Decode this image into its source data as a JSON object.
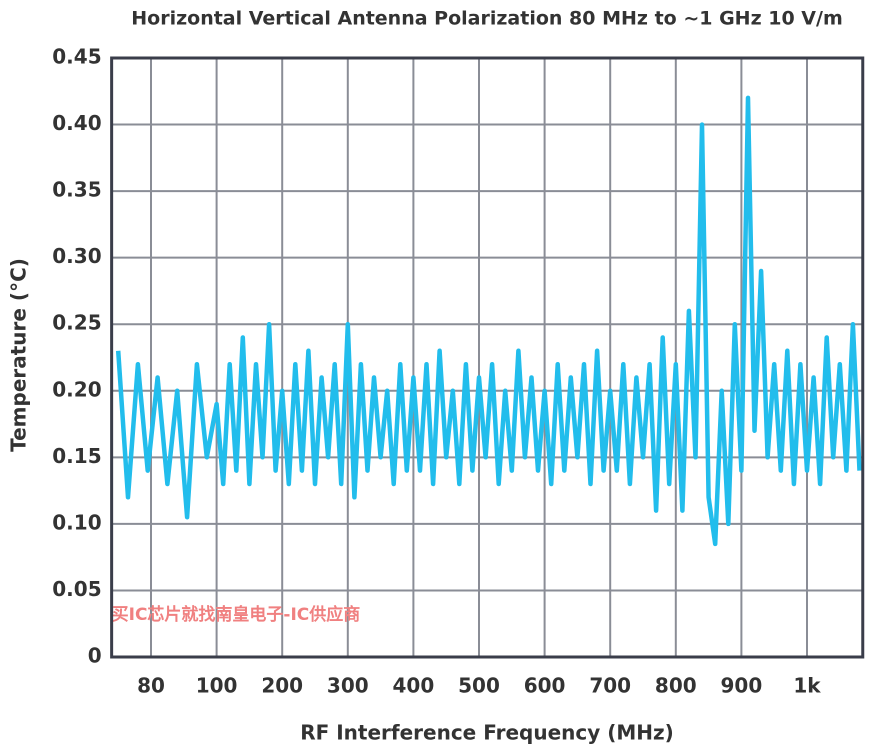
{
  "chart_data": {
    "type": "line",
    "title": "Horizontal Vertical Antenna Polarization 80 MHz to ~1 GHz 10 V/m",
    "x_label": "RF Interference Frequency (MHz)",
    "y_label": "Temperature (°C)",
    "annotation": "买IC芯片就找南皇电子-IC供应商",
    "x": [
      70,
      73,
      76,
      79,
      82,
      85,
      88,
      91,
      94,
      97,
      100,
      110,
      120,
      130,
      140,
      150,
      160,
      170,
      180,
      190,
      200,
      210,
      220,
      230,
      240,
      250,
      260,
      270,
      280,
      290,
      300,
      310,
      320,
      330,
      340,
      350,
      360,
      370,
      380,
      390,
      400,
      410,
      420,
      430,
      440,
      450,
      460,
      470,
      480,
      490,
      500,
      510,
      520,
      530,
      540,
      550,
      560,
      570,
      580,
      590,
      600,
      610,
      620,
      630,
      640,
      650,
      660,
      670,
      680,
      690,
      700,
      710,
      720,
      730,
      740,
      750,
      760,
      770,
      780,
      790,
      800,
      810,
      820,
      830,
      840,
      850,
      860,
      870,
      880,
      890,
      900,
      910,
      920,
      930,
      940,
      950,
      960,
      970,
      980,
      990,
      1000,
      1010,
      1020,
      1030,
      1040,
      1050,
      1060,
      1070,
      1080
    ],
    "series": [
      {
        "name": "Temperature",
        "color": "#22bdec",
        "values": [
          0.23,
          0.12,
          0.22,
          0.14,
          0.21,
          0.13,
          0.2,
          0.105,
          0.22,
          0.15,
          0.19,
          0.13,
          0.22,
          0.14,
          0.24,
          0.13,
          0.22,
          0.15,
          0.25,
          0.14,
          0.2,
          0.13,
          0.22,
          0.14,
          0.23,
          0.13,
          0.21,
          0.15,
          0.22,
          0.13,
          0.25,
          0.12,
          0.22,
          0.14,
          0.21,
          0.15,
          0.2,
          0.13,
          0.22,
          0.14,
          0.21,
          0.14,
          0.22,
          0.13,
          0.23,
          0.15,
          0.2,
          0.13,
          0.22,
          0.14,
          0.21,
          0.15,
          0.22,
          0.13,
          0.2,
          0.14,
          0.23,
          0.15,
          0.21,
          0.14,
          0.2,
          0.13,
          0.22,
          0.14,
          0.21,
          0.15,
          0.22,
          0.13,
          0.23,
          0.14,
          0.2,
          0.14,
          0.22,
          0.13,
          0.21,
          0.15,
          0.22,
          0.11,
          0.24,
          0.13,
          0.22,
          0.11,
          0.26,
          0.15,
          0.4,
          0.12,
          0.085,
          0.2,
          0.1,
          0.25,
          0.14,
          0.42,
          0.17,
          0.29,
          0.15,
          0.22,
          0.14,
          0.23,
          0.13,
          0.22,
          0.14,
          0.21,
          0.13,
          0.24,
          0.15,
          0.22,
          0.14,
          0.25,
          0.14
        ]
      }
    ],
    "xlim": [
      68,
      1085
    ],
    "xticks": [
      80,
      100,
      200,
      300,
      400,
      500,
      600,
      700,
      800,
      900,
      {
        "value": 1000,
        "label": "1k"
      }
    ],
    "ylim": [
      0,
      0.45
    ],
    "yticks": [
      0,
      0.05,
      {
        "value": 0.1,
        "label": "0.10"
      },
      0.15,
      {
        "value": 0.2,
        "label": "0.20"
      },
      0.25,
      {
        "value": 0.3,
        "label": "0.30"
      },
      0.35,
      {
        "value": 0.4,
        "label": "0.40"
      },
      0.45
    ],
    "grid": true
  }
}
